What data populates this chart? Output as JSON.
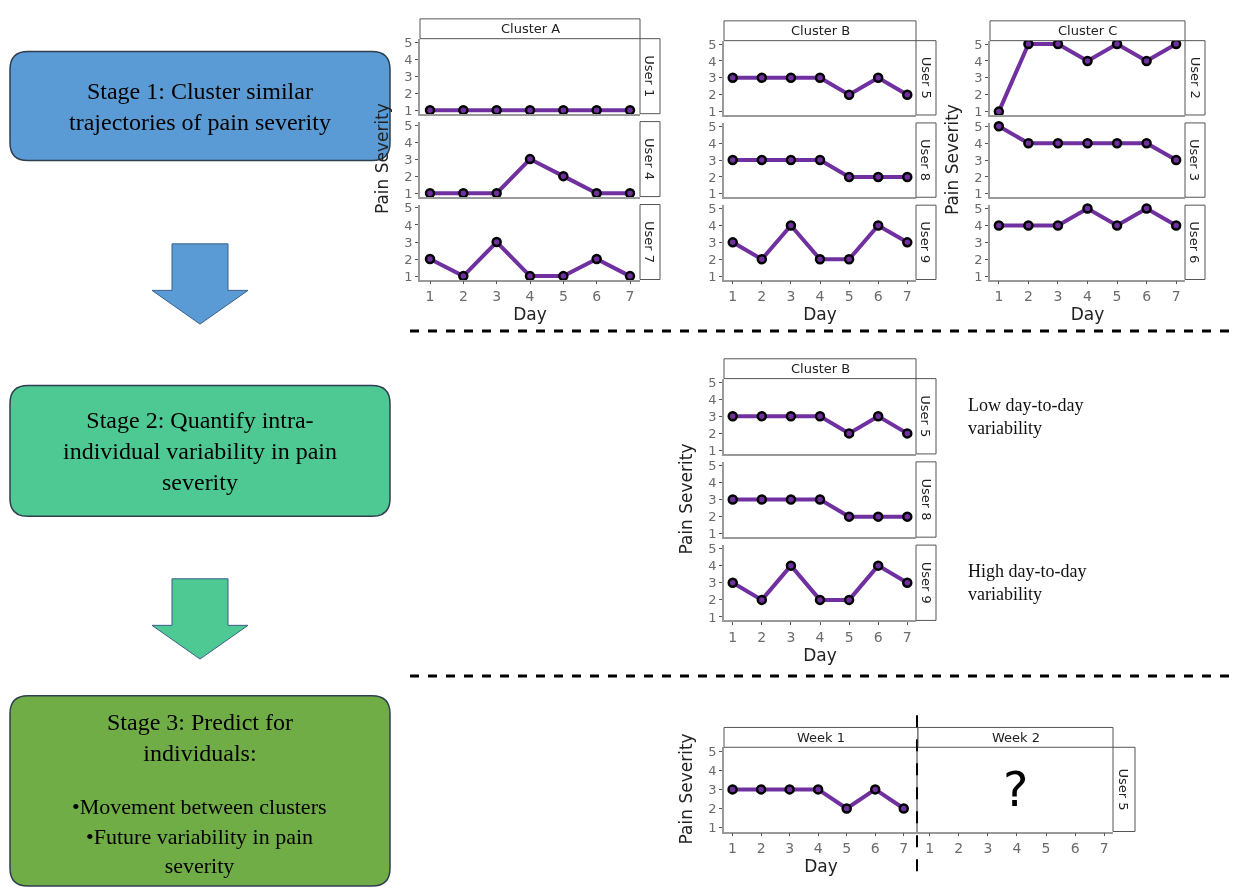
{
  "chart_data": [
    {
      "type": "other",
      "colors": [
        "#5b9bd5",
        "#4fc994",
        "#70ad47"
      ],
      "annotations": [
        "Stage 1: Cluster similar trajectories of pain severity",
        "Stage 2: Quantify intra-individual variability in pain severity",
        "Stage 3: Predict for individuals:",
        "•Movement between clusters",
        "•Future variability in pain severity"
      ]
    },
    {
      "type": "line",
      "title": "Cluster A",
      "x": [
        1,
        2,
        3,
        4,
        5,
        6,
        7
      ],
      "xlim": [
        0.7,
        7.3
      ],
      "ylim": [
        0.8,
        5.2
      ],
      "yticks": [
        1,
        2,
        3,
        4,
        5
      ],
      "tick_labels": "y",
      "marker": "circle",
      "series": [
        {
          "name": "User 1",
          "color": "#7030a0",
          "values": [
            1,
            1,
            1,
            1,
            1,
            1,
            1
          ]
        }
      ]
    },
    {
      "type": "line",
      "ylabel": "Pain Severity",
      "x": [
        1,
        2,
        3,
        4,
        5,
        6,
        7
      ],
      "xlim": [
        0.7,
        7.3
      ],
      "ylim": [
        0.8,
        5.2
      ],
      "yticks": [
        1,
        2,
        3,
        4,
        5
      ],
      "tick_labels": "y",
      "marker": "circle",
      "series": [
        {
          "name": "User 4",
          "color": "#7030a0",
          "values": [
            1,
            1,
            1,
            3,
            2,
            1,
            1
          ]
        }
      ]
    },
    {
      "type": "line",
      "xlabel": "Day",
      "x": [
        1,
        2,
        3,
        4,
        5,
        6,
        7
      ],
      "xlim": [
        0.7,
        7.3
      ],
      "xticks": [
        1,
        2,
        3,
        4,
        5,
        6,
        7
      ],
      "ylim": [
        0.8,
        5.2
      ],
      "yticks": [
        1,
        2,
        3,
        4,
        5
      ],
      "marker": "circle",
      "series": [
        {
          "name": "User 7",
          "color": "#7030a0",
          "values": [
            2,
            1,
            3,
            1,
            1,
            2,
            1
          ]
        }
      ]
    },
    {
      "type": "line",
      "title": "Cluster B",
      "x": [
        1,
        2,
        3,
        4,
        5,
        6,
        7
      ],
      "xlim": [
        0.7,
        7.3
      ],
      "ylim": [
        0.8,
        5.2
      ],
      "yticks": [
        1,
        2,
        3,
        4,
        5
      ],
      "tick_labels": "y",
      "marker": "circle",
      "series": [
        {
          "name": "User 5",
          "color": "#7030a0",
          "values": [
            3,
            3,
            3,
            3,
            2,
            3,
            2
          ]
        }
      ]
    },
    {
      "type": "line",
      "x": [
        1,
        2,
        3,
        4,
        5,
        6,
        7
      ],
      "xlim": [
        0.7,
        7.3
      ],
      "ylim": [
        0.8,
        5.2
      ],
      "yticks": [
        1,
        2,
        3,
        4,
        5
      ],
      "tick_labels": "y",
      "marker": "circle",
      "series": [
        {
          "name": "User 8",
          "color": "#7030a0",
          "values": [
            3,
            3,
            3,
            3,
            2,
            2,
            2
          ]
        }
      ]
    },
    {
      "type": "line",
      "xlabel": "Day",
      "x": [
        1,
        2,
        3,
        4,
        5,
        6,
        7
      ],
      "xlim": [
        0.7,
        7.3
      ],
      "xticks": [
        1,
        2,
        3,
        4,
        5,
        6,
        7
      ],
      "ylim": [
        0.8,
        5.2
      ],
      "yticks": [
        1,
        2,
        3,
        4,
        5
      ],
      "marker": "circle",
      "series": [
        {
          "name": "User 9",
          "color": "#7030a0",
          "values": [
            3,
            2,
            4,
            2,
            2,
            4,
            3
          ]
        }
      ]
    },
    {
      "type": "line",
      "title": "Cluster C",
      "x": [
        1,
        2,
        3,
        4,
        5,
        6,
        7
      ],
      "xlim": [
        0.7,
        7.3
      ],
      "ylim": [
        0.8,
        5.2
      ],
      "yticks": [
        1,
        2,
        3,
        4,
        5
      ],
      "tick_labels": "y",
      "marker": "circle",
      "series": [
        {
          "name": "User 2",
          "color": "#7030a0",
          "values": [
            1,
            5,
            5,
            4,
            5,
            4,
            5
          ]
        }
      ]
    },
    {
      "type": "line",
      "ylabel": "Pain Severity",
      "x": [
        1,
        2,
        3,
        4,
        5,
        6,
        7
      ],
      "xlim": [
        0.7,
        7.3
      ],
      "ylim": [
        0.8,
        5.2
      ],
      "yticks": [
        1,
        2,
        3,
        4,
        5
      ],
      "tick_labels": "y",
      "marker": "circle",
      "series": [
        {
          "name": "User 3",
          "color": "#7030a0",
          "values": [
            5,
            4,
            4,
            4,
            4,
            4,
            3
          ]
        }
      ]
    },
    {
      "type": "line",
      "xlabel": "Day",
      "x": [
        1,
        2,
        3,
        4,
        5,
        6,
        7
      ],
      "xlim": [
        0.7,
        7.3
      ],
      "xticks": [
        1,
        2,
        3,
        4,
        5,
        6,
        7
      ],
      "ylim": [
        0.8,
        5.2
      ],
      "yticks": [
        1,
        2,
        3,
        4,
        5
      ],
      "marker": "circle",
      "series": [
        {
          "name": "User 6",
          "color": "#7030a0",
          "values": [
            4,
            4,
            4,
            5,
            4,
            5,
            4
          ]
        }
      ]
    },
    {
      "type": "line",
      "title": "Cluster B",
      "x": [
        1,
        2,
        3,
        4,
        5,
        6,
        7
      ],
      "xlim": [
        0.7,
        7.3
      ],
      "ylim": [
        0.8,
        5.2
      ],
      "yticks": [
        1,
        2,
        3,
        4,
        5
      ],
      "tick_labels": "y",
      "marker": "circle",
      "annotations": [
        "Low day-to-day variability"
      ],
      "series": [
        {
          "name": "User 5",
          "color": "#7030a0",
          "values": [
            3,
            3,
            3,
            3,
            2,
            3,
            2
          ]
        }
      ]
    },
    {
      "type": "line",
      "ylabel": "Pain Severity",
      "x": [
        1,
        2,
        3,
        4,
        5,
        6,
        7
      ],
      "xlim": [
        0.7,
        7.3
      ],
      "ylim": [
        0.8,
        5.2
      ],
      "yticks": [
        1,
        2,
        3,
        4,
        5
      ],
      "tick_labels": "y",
      "marker": "circle",
      "series": [
        {
          "name": "User 8",
          "color": "#7030a0",
          "values": [
            3,
            3,
            3,
            3,
            2,
            2,
            2
          ]
        }
      ]
    },
    {
      "type": "line",
      "xlabel": "Day",
      "x": [
        1,
        2,
        3,
        4,
        5,
        6,
        7
      ],
      "xlim": [
        0.7,
        7.3
      ],
      "xticks": [
        1,
        2,
        3,
        4,
        5,
        6,
        7
      ],
      "ylim": [
        0.8,
        5.2
      ],
      "yticks": [
        1,
        2,
        3,
        4,
        5
      ],
      "marker": "circle",
      "annotations": [
        "High day-to-day variability"
      ],
      "series": [
        {
          "name": "User 9",
          "color": "#7030a0",
          "values": [
            3,
            2,
            4,
            2,
            2,
            4,
            3
          ]
        }
      ]
    },
    {
      "type": "line",
      "title": "Week 1",
      "xlabel": "Day",
      "ylabel": "Pain Severity",
      "x": [
        1,
        2,
        3,
        4,
        5,
        6,
        7
      ],
      "xlim": [
        0.7,
        7.5
      ],
      "xticks": [
        1,
        2,
        3,
        4,
        5,
        6,
        7
      ],
      "ylim": [
        0.8,
        5.2
      ],
      "yticks": [
        1,
        2,
        3,
        4,
        5
      ],
      "marker": "circle",
      "ref_lines": [
        {
          "axis": "x",
          "value": 7.5,
          "color": "#000000",
          "line_style": "dashed"
        }
      ],
      "series": [
        {
          "color": "#7030a0",
          "values": [
            3,
            3,
            3,
            3,
            2,
            3,
            2
          ]
        }
      ]
    },
    {
      "type": "line",
      "title": "Week 2",
      "xlim": [
        0.6,
        7.3
      ],
      "xticks": [
        1,
        2,
        3,
        4,
        5,
        6,
        7
      ],
      "ylim": [
        0.8,
        5.2
      ],
      "tick_labels": "x",
      "annotations": [
        "?",
        "User 5"
      ]
    }
  ]
}
